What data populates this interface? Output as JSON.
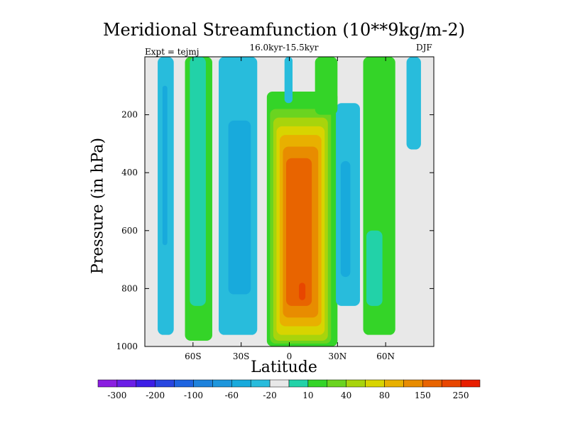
{
  "chart_data": {
    "type": "heatmap",
    "title": "Meridional Streamfunction (10**9kg/m-2)",
    "subtitle_left": "Expt = tejmj",
    "subtitle_center": "16.0kyr-15.5kyr",
    "subtitle_right": "DJF",
    "xlabel": "Latitude",
    "ylabel": "Pressure (in hPa)",
    "xlim": [
      -90,
      90
    ],
    "ylim": [
      1000,
      0
    ],
    "x_ticks": [
      {
        "value": -60,
        "label": "60S"
      },
      {
        "value": -30,
        "label": "30S"
      },
      {
        "value": 0,
        "label": "0"
      },
      {
        "value": 30,
        "label": "30N"
      },
      {
        "value": 60,
        "label": "60N"
      }
    ],
    "y_ticks": [
      {
        "value": 200,
        "label": "200"
      },
      {
        "value": 400,
        "label": "400"
      },
      {
        "value": 600,
        "label": "600"
      },
      {
        "value": 800,
        "label": "800"
      },
      {
        "value": 1000,
        "label": "1000"
      }
    ],
    "levels": [
      -300,
      -250,
      -200,
      -150,
      -100,
      -80,
      -60,
      -40,
      -20,
      -10,
      10,
      20,
      40,
      60,
      80,
      100,
      150,
      200,
      250,
      300
    ],
    "colorbar_labels": [
      "-300",
      "-200",
      "-100",
      "-60",
      "-20",
      "10",
      "40",
      "80",
      "150",
      "250"
    ],
    "colors": [
      "#8a1ee0",
      "#6a1ee6",
      "#3c1ee6",
      "#2846e0",
      "#1e64e0",
      "#1e82dc",
      "#1e96dc",
      "#18aadc",
      "#28bcdc",
      "#e8e8e8",
      "#22d2a8",
      "#34d428",
      "#6ad420",
      "#a8d40c",
      "#d8d400",
      "#e8b000",
      "#e88c00",
      "#e86400",
      "#e84600",
      "#e81e00"
    ],
    "background_color": "#e8e8e8",
    "cells": [
      {
        "x0": -82,
        "x1": -72,
        "p0": 0,
        "p1": 960,
        "band": 8
      },
      {
        "x0": -79,
        "x1": -76,
        "p0": 100,
        "p1": 650,
        "band": 7
      },
      {
        "x0": -65,
        "x1": -48,
        "p0": 0,
        "p1": 980,
        "band": 11
      },
      {
        "x0": -62,
        "x1": -52,
        "p0": 0,
        "p1": 860,
        "band": 10
      },
      {
        "x0": -44,
        "x1": -20,
        "p0": 0,
        "p1": 960,
        "band": 8
      },
      {
        "x0": -38,
        "x1": -24,
        "p0": 220,
        "p1": 820,
        "band": 7
      },
      {
        "x0": -14,
        "x1": 30,
        "p0": 120,
        "p1": 1000,
        "band": 11
      },
      {
        "x0": -12,
        "x1": 26,
        "p0": 180,
        "p1": 990,
        "band": 12
      },
      {
        "x0": -10,
        "x1": 24,
        "p0": 210,
        "p1": 980,
        "band": 13
      },
      {
        "x0": -8,
        "x1": 22,
        "p0": 240,
        "p1": 960,
        "band": 14
      },
      {
        "x0": -6,
        "x1": 20,
        "p0": 270,
        "p1": 930,
        "band": 15
      },
      {
        "x0": -4,
        "x1": 18,
        "p0": 310,
        "p1": 900,
        "band": 16
      },
      {
        "x0": -2,
        "x1": 14,
        "p0": 350,
        "p1": 860,
        "band": 17
      },
      {
        "x0": 6,
        "x1": 10,
        "p0": 780,
        "p1": 840,
        "band": 18
      },
      {
        "x0": 29,
        "x1": 44,
        "p0": 160,
        "p1": 860,
        "band": 8
      },
      {
        "x0": 32,
        "x1": 38,
        "p0": 360,
        "p1": 760,
        "band": 7
      },
      {
        "x0": 46,
        "x1": 66,
        "p0": 0,
        "p1": 960,
        "band": 11
      },
      {
        "x0": 48,
        "x1": 58,
        "p0": 600,
        "p1": 860,
        "band": 10
      },
      {
        "x0": 73,
        "x1": 82,
        "p0": 0,
        "p1": 320,
        "band": 8
      },
      {
        "x0": -3,
        "x1": 2,
        "p0": 0,
        "p1": 160,
        "band": 8
      },
      {
        "x0": 16,
        "x1": 30,
        "p0": 0,
        "p1": 200,
        "band": 11
      }
    ]
  }
}
